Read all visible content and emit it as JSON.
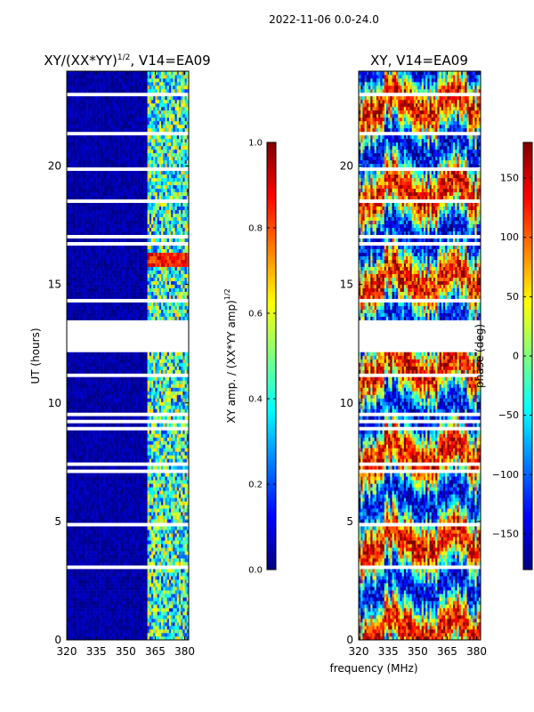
{
  "suptitle": "2022-11-06 0.0-24.0",
  "xlabel_shared": "frequency (MHz)",
  "colors": {
    "jet": [
      "#00007f",
      "#0000ff",
      "#007fff",
      "#00ffff",
      "#7fff7f",
      "#ffff00",
      "#ff7f00",
      "#ff0000",
      "#7f0000"
    ],
    "gap": "#ffffff",
    "frame": "#000000"
  },
  "chart_data": [
    {
      "type": "heatmap",
      "title_main": "XY/(XX*YY)",
      "title_sup": "1/2",
      "title_tail": ", V14=EA09",
      "xlabel": "",
      "ylabel": "UT (hours)",
      "xlim": [
        320,
        382
      ],
      "ylim": [
        0,
        24
      ],
      "xticks": [
        320,
        335,
        350,
        365,
        380
      ],
      "yticks": [
        0,
        5,
        10,
        15,
        20
      ],
      "ytick_labels": [
        "0",
        "5",
        "10",
        "15",
        "20"
      ],
      "colorbar": {
        "label_main": "XY amp. / (XX*YY amp)",
        "label_sup": "1/2",
        "range": [
          0.0,
          1.0
        ],
        "ticks": [
          0.0,
          0.2,
          0.4,
          0.6,
          0.8,
          1.0
        ],
        "tick_labels": [
          "0.0",
          "0.2",
          "0.4",
          "0.6",
          "0.8",
          "1.0"
        ]
      },
      "data_regions": [
        {
          "freq_range": [
            320,
            361
          ],
          "value_range": [
            0.0,
            0.08
          ]
        },
        {
          "freq_range": [
            361,
            382
          ],
          "value_range": [
            0.15,
            0.7
          ]
        }
      ],
      "bright_band_ut": [
        15.8,
        16.4
      ],
      "gap_band_ut": [
        12.2,
        13.5
      ]
    },
    {
      "type": "heatmap",
      "title": "XY, V14=EA09",
      "xlabel": "frequency (MHz)",
      "ylabel": "",
      "xlim": [
        320,
        382
      ],
      "ylim": [
        0,
        24
      ],
      "xticks": [
        320,
        335,
        350,
        365,
        380
      ],
      "yticks": [
        0,
        5,
        10,
        15,
        20
      ],
      "ytick_labels": [
        "0",
        "5",
        "10",
        "15",
        "20"
      ],
      "colorbar": {
        "label": "phase (deg)",
        "range": [
          -180,
          180
        ],
        "ticks": [
          -150,
          -100,
          -50,
          0,
          50,
          100,
          150
        ],
        "tick_labels": [
          "−150",
          "−100",
          "−50",
          "0",
          "50",
          "100",
          "150"
        ]
      },
      "value_range": [
        -180,
        180
      ],
      "gap_band_ut": [
        12.2,
        13.5
      ]
    }
  ]
}
